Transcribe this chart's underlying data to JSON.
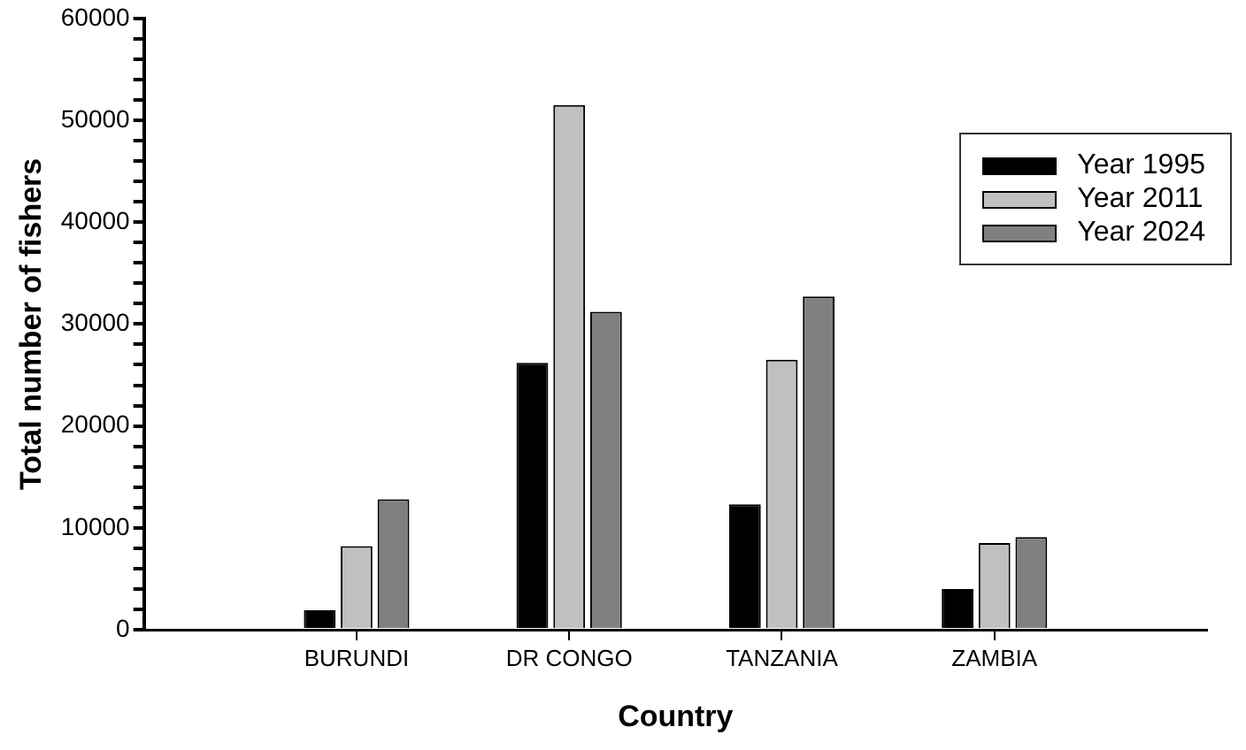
{
  "chart_data": {
    "type": "bar",
    "xlabel": "Country",
    "ylabel": "Total number of fishers",
    "categories": [
      "BURUNDI",
      "DR CONGO",
      "TANZANIA",
      "ZAMBIA"
    ],
    "series": [
      {
        "name": "Year 1995",
        "color": "#000000",
        "values": [
          1900,
          26200,
          12300,
          4000
        ]
      },
      {
        "name": "Year 2011",
        "color": "#c0c0c0",
        "values": [
          8200,
          51500,
          26500,
          8500
        ]
      },
      {
        "name": "Year 2024",
        "color": "#808080",
        "values": [
          12800,
          31200,
          32700,
          9100
        ]
      }
    ],
    "ylim": [
      0,
      60000
    ],
    "yticks": [
      0,
      {
        "value": 2000,
        "label": null
      },
      {
        "value": 4000,
        "label": null
      },
      {
        "value": 6000,
        "label": null
      },
      {
        "value": 8000,
        "label": null
      },
      10000,
      {
        "value": 12000,
        "label": null
      },
      {
        "value": 14000,
        "label": null
      },
      {
        "value": 16000,
        "label": null
      },
      {
        "value": 18000,
        "label": null
      },
      20000,
      {
        "value": 22000,
        "label": null
      },
      {
        "value": 24000,
        "label": null
      },
      {
        "value": 26000,
        "label": null
      },
      {
        "value": 28000,
        "label": null
      },
      30000,
      {
        "value": 32000,
        "label": null
      },
      {
        "value": 34000,
        "label": null
      },
      {
        "value": 36000,
        "label": null
      },
      {
        "value": 38000,
        "label": null
      },
      40000,
      {
        "value": 42000,
        "label": null
      },
      {
        "value": 44000,
        "label": null
      },
      {
        "value": 46000,
        "label": null
      },
      {
        "value": 48000,
        "label": null
      },
      50000,
      {
        "value": 52000,
        "label": null
      },
      {
        "value": 54000,
        "label": null
      },
      {
        "value": 56000,
        "label": null
      },
      {
        "value": 58000,
        "label": null
      },
      60000
    ],
    "grid": false,
    "legend": "top right"
  }
}
